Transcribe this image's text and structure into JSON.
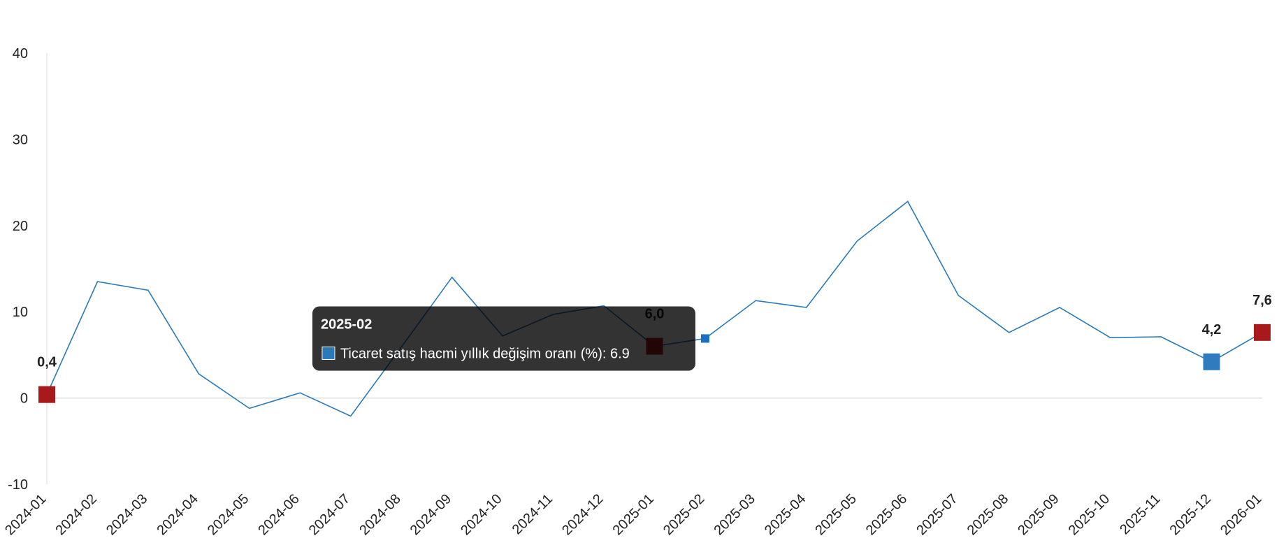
{
  "chart_data": {
    "type": "line",
    "categories": [
      "2024-01",
      "2024-02",
      "2024-03",
      "2024-04",
      "2024-05",
      "2024-06",
      "2024-07",
      "2024-08",
      "2024-09",
      "2024-10",
      "2024-11",
      "2024-12",
      "2025-01",
      "2025-02",
      "2025-03",
      "2025-04",
      "2025-05",
      "2025-06",
      "2025-07",
      "2025-08",
      "2025-09",
      "2025-10",
      "2025-11",
      "2025-12",
      "2026-01"
    ],
    "series": [
      {
        "name": "Ticaret satış hacmi yıllık değişim oranı (%)",
        "color": "#2a7ab9",
        "values": [
          0.4,
          13.5,
          12.5,
          2.8,
          -1.2,
          0.6,
          -2.1,
          5.9,
          14.0,
          7.2,
          9.7,
          10.7,
          6.0,
          6.9,
          11.3,
          10.5,
          18.2,
          22.8,
          11.9,
          7.6,
          10.5,
          7.0,
          7.1,
          4.2,
          7.6
        ],
        "value_labels": [
          "0,4",
          null,
          null,
          null,
          null,
          null,
          null,
          null,
          null,
          null,
          null,
          null,
          "6,0",
          null,
          null,
          null,
          null,
          null,
          null,
          null,
          null,
          null,
          null,
          "4,2",
          "7,6"
        ],
        "marker_colors": [
          "#a8191c",
          null,
          null,
          null,
          null,
          null,
          null,
          null,
          null,
          null,
          null,
          null,
          "#a8191c",
          "#1a6fc0",
          null,
          null,
          null,
          null,
          null,
          null,
          null,
          null,
          null,
          "#2f7bbd",
          "#a8191c"
        ]
      }
    ],
    "ylim": [
      -10,
      40
    ],
    "yticks": [
      -10,
      0,
      10,
      20,
      30,
      40
    ],
    "grid": false,
    "active_category": "2025-02"
  }
}
